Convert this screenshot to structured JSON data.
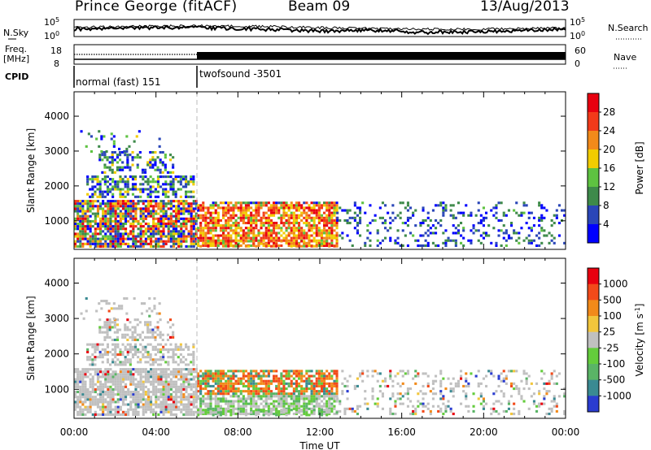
{
  "header": {
    "station": "Prince George (fitACF)",
    "beam": "Beam 09",
    "date": "13/Aug/2013"
  },
  "top_panels": {
    "nsky_label": "N.Sky",
    "nsky_ticks": [
      "10^5",
      "10^0"
    ],
    "nsearch_label": "N.Search",
    "nsearch_ticks": [
      "10^5",
      "10^0"
    ],
    "freq_label_1": "Freq.",
    "freq_label_2": "[MHz]",
    "freq_ticks": [
      "18",
      "8"
    ],
    "nave_label": "Nave",
    "nave_ticks": [
      "60",
      "0"
    ],
    "cpid_label": "CPID",
    "cpid_segments": [
      {
        "name": "normal (fast) 151",
        "start_hour": 0,
        "end_hour": 6
      },
      {
        "name": "twofsound -3501",
        "start_hour": 6,
        "end_hour": 24
      }
    ]
  },
  "chart_data": [
    {
      "type": "heatmap",
      "panel": "power",
      "ylabel": "Slant Range [km]",
      "xlim": [
        0,
        24
      ],
      "ylim": [
        180,
        4700
      ],
      "yticks": [
        "1000",
        "2000",
        "3000",
        "4000"
      ],
      "colorbar_label": "Power [dB]",
      "colorbar_ticks": [
        "28",
        "24",
        "20",
        "16",
        "12",
        "8",
        "4"
      ],
      "scale_range": [
        0,
        30
      ],
      "colors": [
        "#0000ff",
        "#2a46b8",
        "#3e8a4a",
        "#5ec241",
        "#f2cc00",
        "#f28a1a",
        "#f23a1a",
        "#e8000f"
      ]
    },
    {
      "type": "heatmap",
      "panel": "velocity",
      "ylabel": "Slant Range [km]",
      "xlim": [
        0,
        24
      ],
      "ylim": [
        180,
        4700
      ],
      "yticks": [
        "1000",
        "2000",
        "3000",
        "4000"
      ],
      "colorbar_label": "Velocity [m s^-1]",
      "colorbar_ticks": [
        "1000",
        "500",
        "100",
        "25",
        "-25",
        "-100",
        "-500",
        "-1000"
      ],
      "colors": [
        "#2a3cd0",
        "#3a8a92",
        "#5ab466",
        "#64cc3c",
        "#c0c0c0",
        "#f2c63c",
        "#f28a1a",
        "#f24a1a",
        "#e8000f"
      ],
      "xticks": [
        "00:00",
        "04:00",
        "08:00",
        "12:00",
        "16:00",
        "20:00",
        "00:00"
      ],
      "xlabel": "Time UT"
    }
  ]
}
